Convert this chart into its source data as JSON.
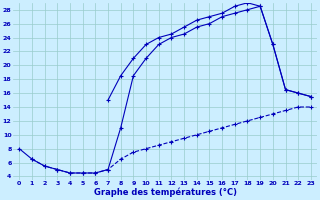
{
  "title": "Graphe des températures (°C)",
  "xlabel_ticks": [
    0,
    1,
    2,
    3,
    4,
    5,
    6,
    7,
    8,
    9,
    10,
    11,
    12,
    13,
    14,
    15,
    16,
    17,
    18,
    19,
    20,
    21,
    22,
    23
  ],
  "yticks": [
    4,
    6,
    8,
    10,
    12,
    14,
    16,
    18,
    20,
    22,
    24,
    26,
    28
  ],
  "ylim": [
    3.5,
    29
  ],
  "xlim": [
    -0.5,
    23.5
  ],
  "background_color": "#cceeff",
  "line_color": "#0000bb",
  "grid_color": "#99cccc",
  "curve1_x": [
    0,
    1,
    2,
    3,
    4,
    5,
    6,
    7,
    8,
    9,
    10,
    11,
    12,
    13,
    14,
    15,
    16,
    17,
    18,
    19,
    20,
    21,
    22,
    23
  ],
  "curve1_y": [
    8,
    6.5,
    5.5,
    5,
    4.5,
    4.5,
    4.5,
    5,
    11,
    18.5,
    21,
    23,
    24,
    24.5,
    25.5,
    26,
    27,
    27.5,
    28,
    28.5,
    23,
    16.5,
    16,
    15.5
  ],
  "curve2_x": [
    1,
    2,
    3,
    4,
    5,
    6,
    7,
    8,
    9,
    10,
    11,
    12,
    13,
    14,
    15,
    16,
    17,
    18,
    19,
    20,
    21,
    22,
    23
  ],
  "curve2_y": [
    6.5,
    5.5,
    5,
    4.5,
    4.5,
    4.5,
    5,
    6.5,
    7.5,
    8,
    8.5,
    9,
    9.5,
    10,
    10.5,
    11,
    11.5,
    12,
    12.5,
    13,
    13.5,
    14,
    14
  ],
  "curve3_x": [
    7,
    8,
    9,
    10,
    11,
    12,
    13,
    14,
    15,
    16,
    17,
    18,
    19,
    20,
    21,
    22,
    23
  ],
  "curve3_y": [
    15,
    18.5,
    21,
    23,
    24,
    24.5,
    25.5,
    26.5,
    27,
    27.5,
    28.5,
    29,
    28.5,
    23,
    16.5,
    16,
    15.5
  ]
}
